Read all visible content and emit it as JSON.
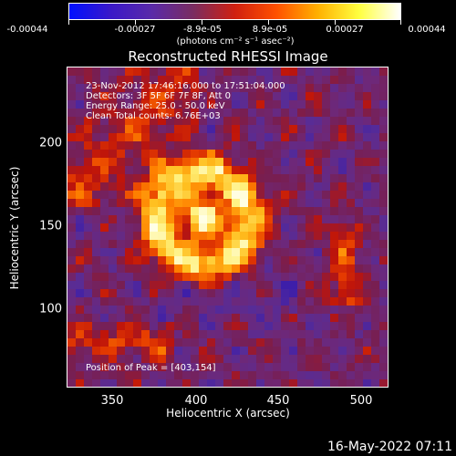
{
  "colorbar": {
    "colors": [
      "#0010ff",
      "#3a18c8",
      "#5a2aa8",
      "#7a2c60",
      "#d02010",
      "#ff5000",
      "#ffb000",
      "#ffff40",
      "#ffffff"
    ],
    "tick_labels": [
      "-0.00044",
      "-0.00027",
      "-8.9e-05",
      "8.9e-05",
      "0.00027",
      "0.00044"
    ],
    "unit": "(photons cm⁻² s⁻¹ asec⁻²)"
  },
  "title": "Reconstructed RHESSI Image",
  "annotations": {
    "time": "23-Nov-2012 17:46:16.000 to 17:51:04.000",
    "detectors": "Detectors: 3F 5F 6F 7F 8F, Att 0",
    "energy": "Energy Range: 25.0 - 50.0 keV",
    "clean": "Clean     Total counts: 6.76E+03",
    "peak": "Position of Peak = [403,154]"
  },
  "axes": {
    "xlabel": "Heliocentric X (arcsec)",
    "ylabel": "Heliocentric Y (arcsec)",
    "xticks": [
      "350",
      "400",
      "450",
      "500"
    ],
    "yticks": [
      "200",
      "150",
      "100"
    ]
  },
  "timestamp": "16-May-2022 07:11"
}
